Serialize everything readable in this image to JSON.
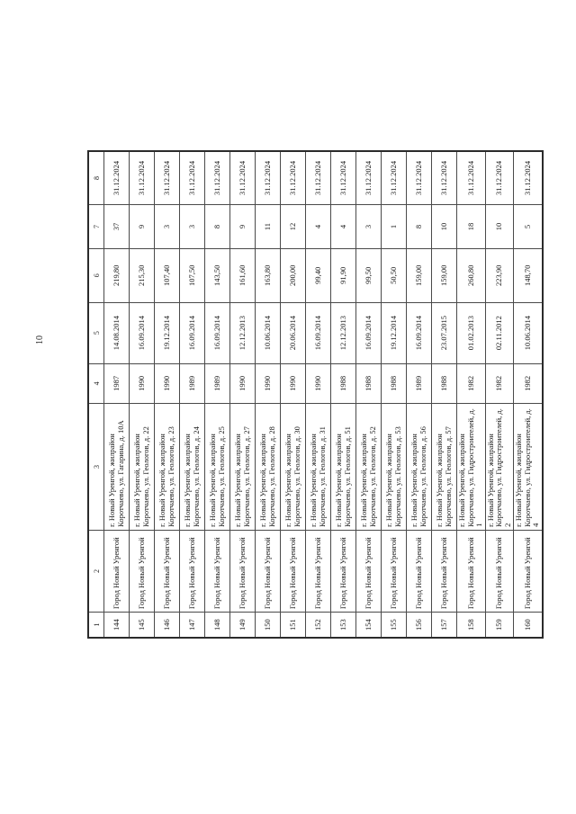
{
  "page_number": "10",
  "table": {
    "columns": [
      "num",
      "city",
      "address",
      "year",
      "date",
      "area",
      "count",
      "end_date"
    ],
    "headers": [
      "1",
      "2",
      "3",
      "4",
      "5",
      "6",
      "7",
      "8"
    ],
    "rows": [
      {
        "num": "144",
        "city": "Город Новый Уренгой",
        "address": "г. Новый Уренгой, жилрайон Коротчаево, ул. Гагарина, д. 10А",
        "year": "1987",
        "date": "14.08.2014",
        "area": "219,80",
        "count": "37",
        "end_date": "31.12.2024"
      },
      {
        "num": "145",
        "city": "Город Новый Уренгой",
        "address": "г. Новый Уренгой, жилрайон Коротчаево, ул. Геологов, д. 22",
        "year": "1990",
        "date": "16.09.2014",
        "area": "215,30",
        "count": "9",
        "end_date": "31.12.2024"
      },
      {
        "num": "146",
        "city": "Город Новый Уренгой",
        "address": "г. Новый Уренгой, жилрайон Коротчаево, ул. Геологов, д. 23",
        "year": "1990",
        "date": "19.12.2014",
        "area": "107,40",
        "count": "3",
        "end_date": "31.12.2024"
      },
      {
        "num": "147",
        "city": "Город Новый Уренгой",
        "address": "г. Новый Уренгой, жилрайон Коротчаево, ул. Геологов, д. 24",
        "year": "1989",
        "date": "16.09.2014",
        "area": "107,50",
        "count": "3",
        "end_date": "31.12.2024"
      },
      {
        "num": "148",
        "city": "Город Новый Уренгой",
        "address": "г. Новый Уренгой, жилрайон Коротчаево, ул. Геологов, д. 25",
        "year": "1989",
        "date": "16.09.2014",
        "area": "143,50",
        "count": "8",
        "end_date": "31.12.2024"
      },
      {
        "num": "149",
        "city": "Город Новый Уренгой",
        "address": "г. Новый Уренгой, жилрайон Коротчаево, ул. Геологов, д. 27",
        "year": "1990",
        "date": "12.12.2013",
        "area": "161,60",
        "count": "9",
        "end_date": "31.12.2024"
      },
      {
        "num": "150",
        "city": "Город Новый Уренгой",
        "address": "г. Новый Уренгой, жилрайон Коротчаево, ул. Геологов, д. 28",
        "year": "1990",
        "date": "10.06.2014",
        "area": "163,80",
        "count": "11",
        "end_date": "31.12.2024"
      },
      {
        "num": "151",
        "city": "Город Новый Уренгой",
        "address": "г. Новый Уренгой, жилрайон Коротчаево, ул. Геологов, д. 30",
        "year": "1990",
        "date": "20.06.2014",
        "area": "200,00",
        "count": "12",
        "end_date": "31.12.2024"
      },
      {
        "num": "152",
        "city": "Город Новый Уренгой",
        "address": "г. Новый Уренгой, жилрайон Коротчаево, ул. Геологов, д. 31",
        "year": "1990",
        "date": "16.09.2014",
        "area": "99,40",
        "count": "4",
        "end_date": "31.12.2024"
      },
      {
        "num": "153",
        "city": "Город Новый Уренгой",
        "address": "г. Новый Уренгой, жилрайон Коротчаево, ул. Геологов, д. 51",
        "year": "1988",
        "date": "12.12.2013",
        "area": "91,90",
        "count": "4",
        "end_date": "31.12.2024"
      },
      {
        "num": "154",
        "city": "Город Новый Уренгой",
        "address": "г. Новый Уренгой, жилрайон Коротчаево, ул. Геологов, д. 52",
        "year": "1988",
        "date": "16.09.2014",
        "area": "99,50",
        "count": "3",
        "end_date": "31.12.2024"
      },
      {
        "num": "155",
        "city": "Город Новый Уренгой",
        "address": "г. Новый Уренгой, жилрайон Коротчаево, ул. Геологов, д. 53",
        "year": "1988",
        "date": "19.12.2014",
        "area": "50,50",
        "count": "1",
        "end_date": "31.12.2024"
      },
      {
        "num": "156",
        "city": "Город Новый Уренгой",
        "address": "г. Новый Уренгой, жилрайон Коротчаево, ул. Геологов, д. 56",
        "year": "1989",
        "date": "16.09.2014",
        "area": "159,00",
        "count": "8",
        "end_date": "31.12.2024"
      },
      {
        "num": "157",
        "city": "Город Новый Уренгой",
        "address": "г. Новый Уренгой, жилрайон Коротчаево, ул. Геологов, д. 57",
        "year": "1988",
        "date": "23.07.2015",
        "area": "159,00",
        "count": "10",
        "end_date": "31.12.2024"
      },
      {
        "num": "158",
        "city": "Город Новый Уренгой",
        "address": "г. Новый Уренгой, жилрайон Коротчаево, ул. Гидростроителей, д. 1",
        "year": "1982",
        "date": "01.02.2013",
        "area": "260,80",
        "count": "18",
        "end_date": "31.12.2024"
      },
      {
        "num": "159",
        "city": "Город Новый Уренгой",
        "address": "г. Новый Уренгой, жилрайон Коротчаево, ул. Гидростроителей, д. 2",
        "year": "1982",
        "date": "02.11.2012",
        "area": "223,90",
        "count": "10",
        "end_date": "31.12.2024"
      },
      {
        "num": "160",
        "city": "Город Новый Уренгой",
        "address": "г. Новый Уренгой, жилрайон Коротчаево, ул. Гидростроителей, д. 4",
        "year": "1982",
        "date": "10.06.2014",
        "area": "148,70",
        "count": "5",
        "end_date": "31.12.2024"
      }
    ]
  }
}
